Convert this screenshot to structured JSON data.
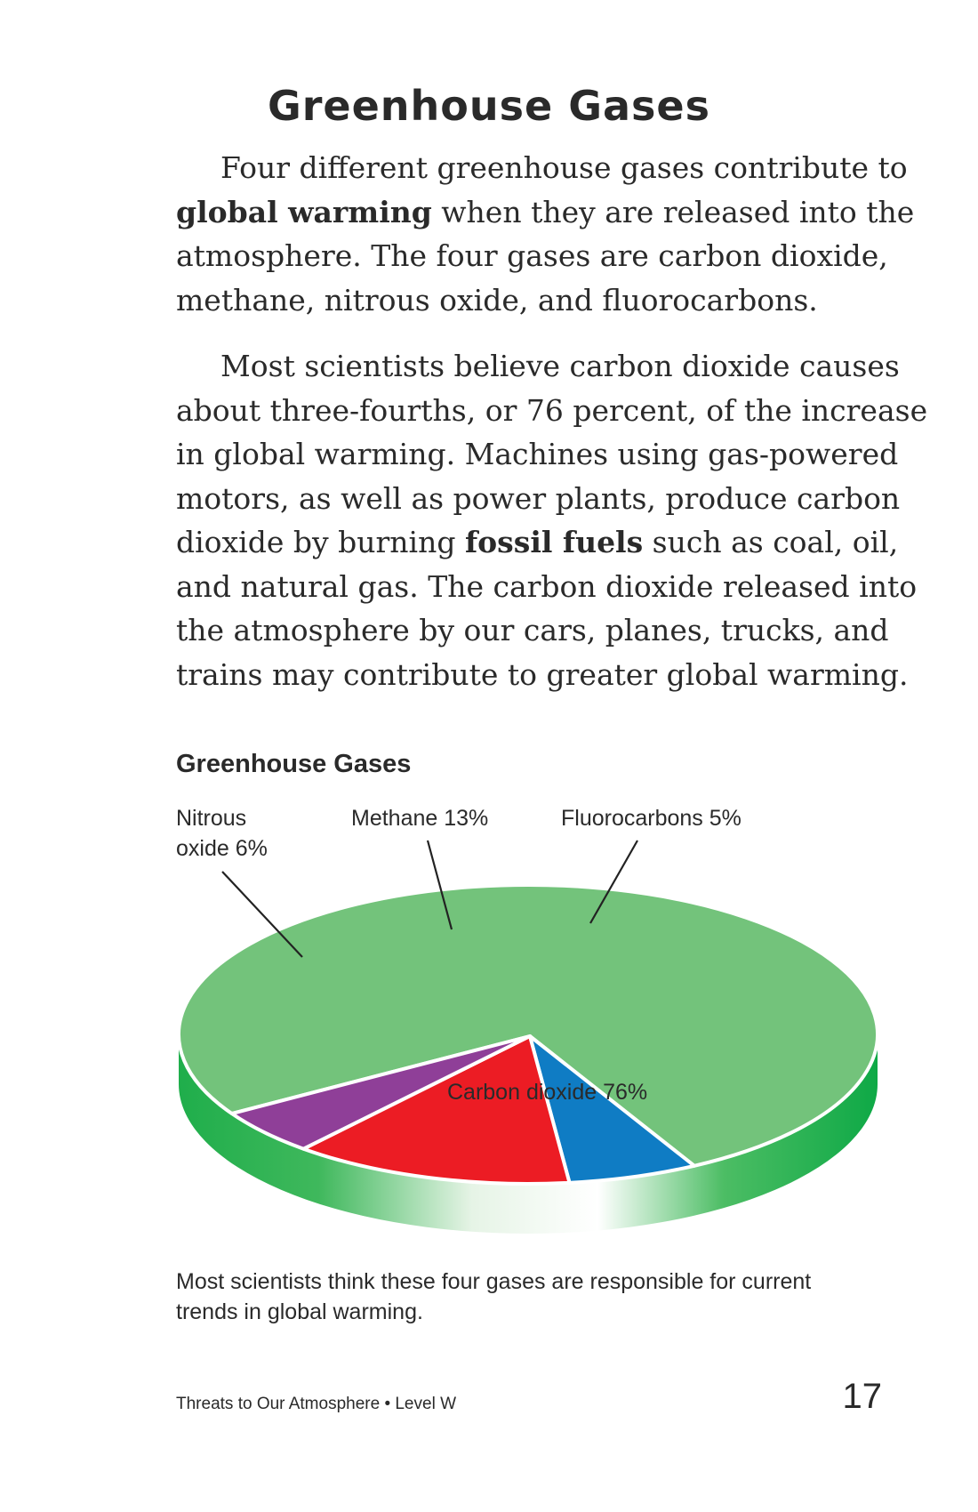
{
  "page": {
    "title": "Greenhouse Gases",
    "paragraph1": {
      "l1": "Four different greenhouse gases contribute to",
      "l2_bold": "global warming",
      "l2_rest": " when they are released into the",
      "l3": "atmosphere. The four gases are carbon dioxide,",
      "l4": "methane, nitrous oxide, and fluorocarbons."
    },
    "paragraph2": {
      "l1": "Most scientists believe carbon dioxide causes",
      "l2": "about three-fourths, or 76 percent, of the increase",
      "l3": "in global warming. Machines using gas-powered",
      "l4": "motors, as well as power plants, produce carbon",
      "l5_pre": "dioxide by burning ",
      "l5_bold": "fossil fuels",
      "l5_post": " such as coal, oil,",
      "l6": "and natural gas. The carbon dioxide released into",
      "l7": "the atmosphere by our cars, planes, trucks, and",
      "l8": "trains may contribute to greater global warming."
    },
    "caption": {
      "l1": "Most scientists think these four gases are responsible for current",
      "l2": "trends in global warming."
    },
    "footer": "Threats to Our Atmosphere • Level W",
    "page_number": "17"
  },
  "chart_data": {
    "type": "pie",
    "title": "Greenhouse Gases",
    "slices": [
      {
        "label_lines": [
          "Carbon dioxide 76%"
        ],
        "value": 76,
        "color": "#73c37b",
        "side_color": "#1fae4b"
      },
      {
        "label_lines": [
          "Nitrous",
          "oxide 6%"
        ],
        "value": 6,
        "color": "#0f7cc4",
        "side_color": "#0a5a8f"
      },
      {
        "label_lines": [
          "Methane 13%"
        ],
        "value": 13,
        "color": "#ec1c24",
        "side_color": "#a31419"
      },
      {
        "label_lines": [
          "Fluorocarbons 5%"
        ],
        "value": 5,
        "color": "#8f3f98",
        "side_color": "#652b6b"
      }
    ]
  }
}
